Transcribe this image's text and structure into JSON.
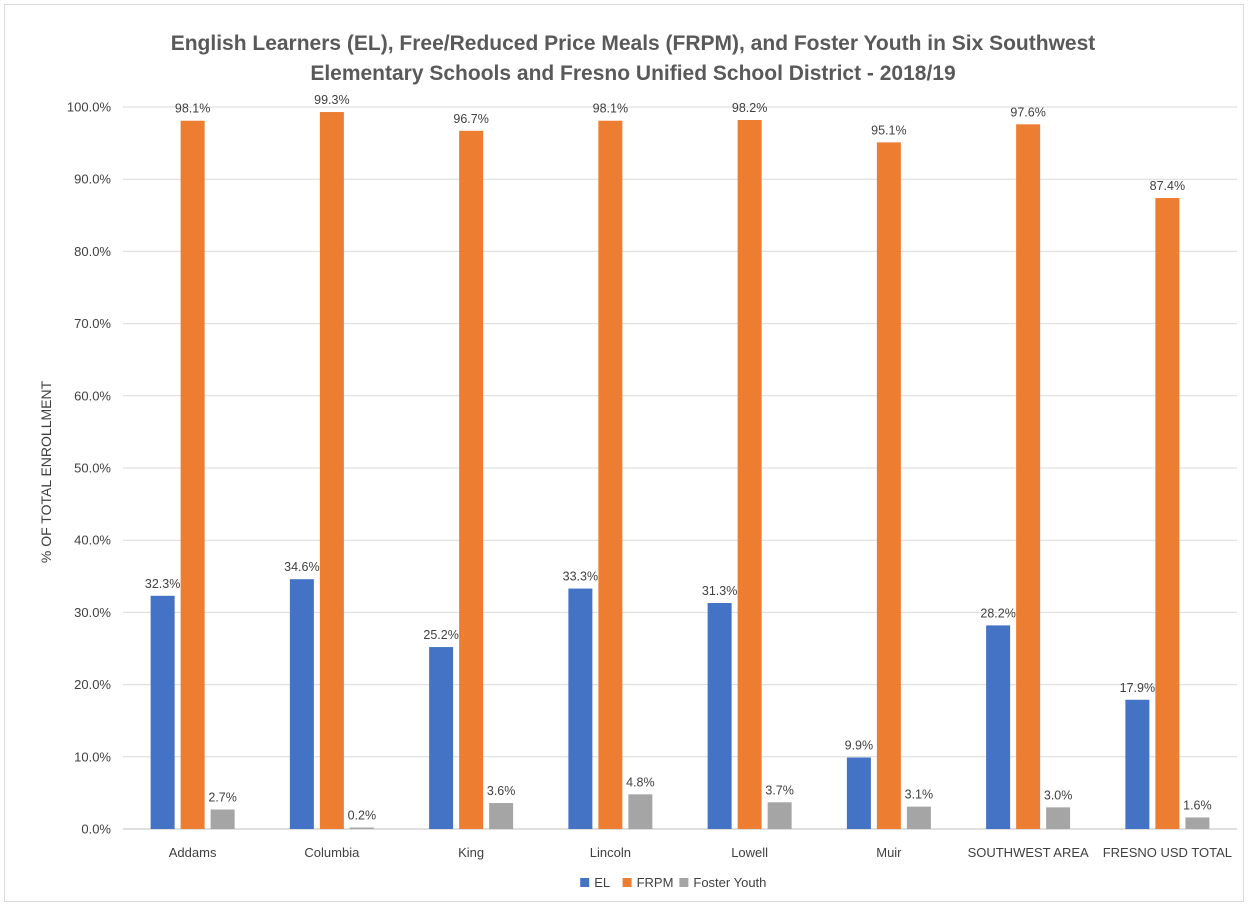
{
  "chart_data": {
    "type": "bar",
    "title": "English Learners (EL), Free/Reduced Price Meals (FRPM), and Foster Youth in Six Southwest Elementary Schools and Fresno Unified School District - 2018/19",
    "title_lines": [
      "English Learners (EL), Free/Reduced Price Meals (FRPM), and Foster Youth in Six Southwest",
      "Elementary Schools and Fresno Unified School District - 2018/19"
    ],
    "xlabel": "",
    "ylabel": "% OF TOTAL ENROLLMENT",
    "ylim": [
      0,
      100
    ],
    "y_ticks": [
      "0.0%",
      "10.0%",
      "20.0%",
      "30.0%",
      "40.0%",
      "50.0%",
      "60.0%",
      "70.0%",
      "80.0%",
      "90.0%",
      "100.0%"
    ],
    "grid": true,
    "legend_position": "bottom",
    "categories": [
      "Addams",
      "Columbia",
      "King",
      "Lincoln",
      "Lowell",
      "Muir",
      "SOUTHWEST AREA",
      "FRESNO USD TOTAL"
    ],
    "series": [
      {
        "name": "EL",
        "color": "#4472c4",
        "values": [
          32.3,
          34.6,
          25.2,
          33.3,
          31.3,
          9.9,
          28.2,
          17.9
        ],
        "labels": [
          "32.3%",
          "34.6%",
          "25.2%",
          "33.3%",
          "31.3%",
          "9.9%",
          "28.2%",
          "17.9%"
        ]
      },
      {
        "name": "FRPM",
        "color": "#ed7d31",
        "values": [
          98.1,
          99.3,
          96.7,
          98.1,
          98.2,
          95.1,
          97.6,
          87.4
        ],
        "labels": [
          "98.1%",
          "99.3%",
          "96.7%",
          "98.1%",
          "98.2%",
          "95.1%",
          "97.6%",
          "87.4%"
        ]
      },
      {
        "name": "Foster Youth",
        "color": "#a5a5a5",
        "values": [
          2.7,
          0.2,
          3.6,
          4.8,
          3.7,
          3.1,
          3.0,
          1.6
        ],
        "labels": [
          "2.7%",
          "0.2%",
          "3.6%",
          "4.8%",
          "3.7%",
          "3.1%",
          "3.0%",
          "1.6%"
        ]
      }
    ]
  }
}
